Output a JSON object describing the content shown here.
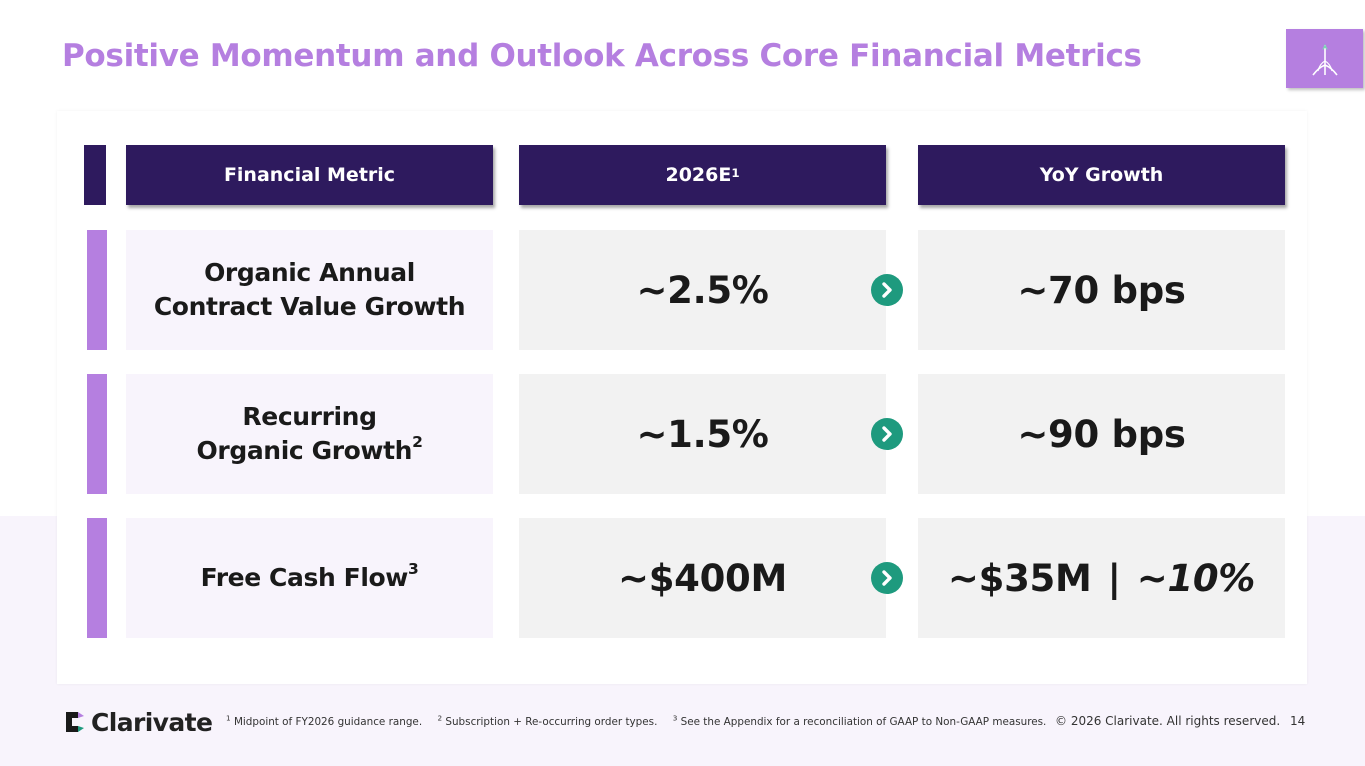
{
  "title": "Positive Momentum and Outlook Across Core Financial Metrics",
  "header": {
    "metric": "Financial Metric",
    "estimate": "2026E",
    "estimate_sup": "1",
    "growth": "YoY Growth"
  },
  "rows": [
    {
      "label_line1": "Organic Annual",
      "label_line2": "Contract Value Growth",
      "label_sup": "",
      "value": "~2.5%",
      "growth": "~70 bps"
    },
    {
      "label_line1": "Recurring",
      "label_line2": "Organic Growth",
      "label_sup": "2",
      "value": "~1.5%",
      "growth": "~90 bps"
    },
    {
      "label_line1": "Free Cash Flow",
      "label_line2": "",
      "label_sup": "3",
      "value": "~$400M",
      "growth_a": "~$35M",
      "growth_sep": "|",
      "growth_b_prefix": "~",
      "growth_b": "10%"
    }
  ],
  "footer": {
    "brand": "Clarivate",
    "note1_sup": "1",
    "note1": "Midpoint of FY2026 guidance range.",
    "note2_sup": "2",
    "note2": "Subscription + Re-occurring order types.",
    "note3_sup": "3",
    "note3": "See the Appendix for a reconciliation of GAAP to Non-GAAP measures.",
    "copyright": "© 2026 Clarivate. All rights reserved.",
    "page_number": "14"
  },
  "colors": {
    "accent_purple": "#b57fe0",
    "header_navy": "#2e1a5e",
    "arrow_green": "#1e9a7e"
  },
  "icons": {
    "corner_logo": "sprout-icon",
    "row_arrow": "chevron-right-icon",
    "brand_logo": "clarivate-logo-icon"
  }
}
